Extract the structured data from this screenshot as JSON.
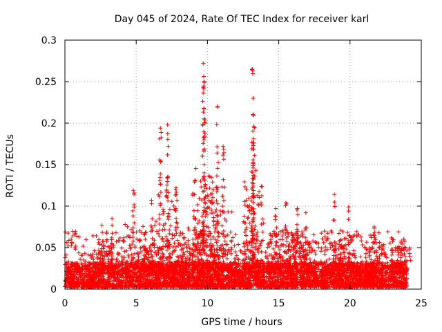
{
  "chart_data": {
    "type": "scatter",
    "title": "Day 045 of 2024, Rate Of TEC Index for receiver karl",
    "xlabel": "GPS time / hours",
    "ylabel": "ROTI / TECUs",
    "xlim": [
      0,
      25
    ],
    "ylim": [
      0,
      0.3
    ],
    "x_ticks": [
      0,
      5,
      10,
      15,
      20,
      25
    ],
    "y_ticks": [
      0,
      0.05,
      0.1,
      0.15,
      0.2,
      0.25,
      0.3
    ],
    "x_tick_labels": [
      "0",
      "5",
      "10",
      "15",
      "20",
      "25"
    ],
    "y_tick_labels": [
      "0",
      "0.05",
      "0.1",
      "0.15",
      "0.2",
      "0.25",
      "0.3"
    ],
    "grid": true,
    "marker": "plus",
    "color": "#ff0000",
    "baseline_band": [
      0.0,
      0.03
    ],
    "notable_peaks": [
      {
        "x": 2.6,
        "y": 0.077
      },
      {
        "x": 3.3,
        "y": 0.085
      },
      {
        "x": 4.8,
        "y": 0.119
      },
      {
        "x": 5.6,
        "y": 0.066
      },
      {
        "x": 6.7,
        "y": 0.194
      },
      {
        "x": 7.2,
        "y": 0.198
      },
      {
        "x": 7.8,
        "y": 0.122
      },
      {
        "x": 9.0,
        "y": 0.115
      },
      {
        "x": 9.7,
        "y": 0.272
      },
      {
        "x": 9.75,
        "y": 0.25
      },
      {
        "x": 9.8,
        "y": 0.204
      },
      {
        "x": 10.7,
        "y": 0.22
      },
      {
        "x": 11.1,
        "y": 0.172
      },
      {
        "x": 13.15,
        "y": 0.265
      },
      {
        "x": 13.2,
        "y": 0.23
      },
      {
        "x": 13.25,
        "y": 0.196
      },
      {
        "x": 14.8,
        "y": 0.097
      },
      {
        "x": 15.5,
        "y": 0.104
      },
      {
        "x": 16.3,
        "y": 0.097
      },
      {
        "x": 16.9,
        "y": 0.092
      },
      {
        "x": 18.9,
        "y": 0.114
      },
      {
        "x": 19.9,
        "y": 0.099
      },
      {
        "x": 21.7,
        "y": 0.075
      },
      {
        "x": 23.6,
        "y": 0.058
      }
    ]
  }
}
